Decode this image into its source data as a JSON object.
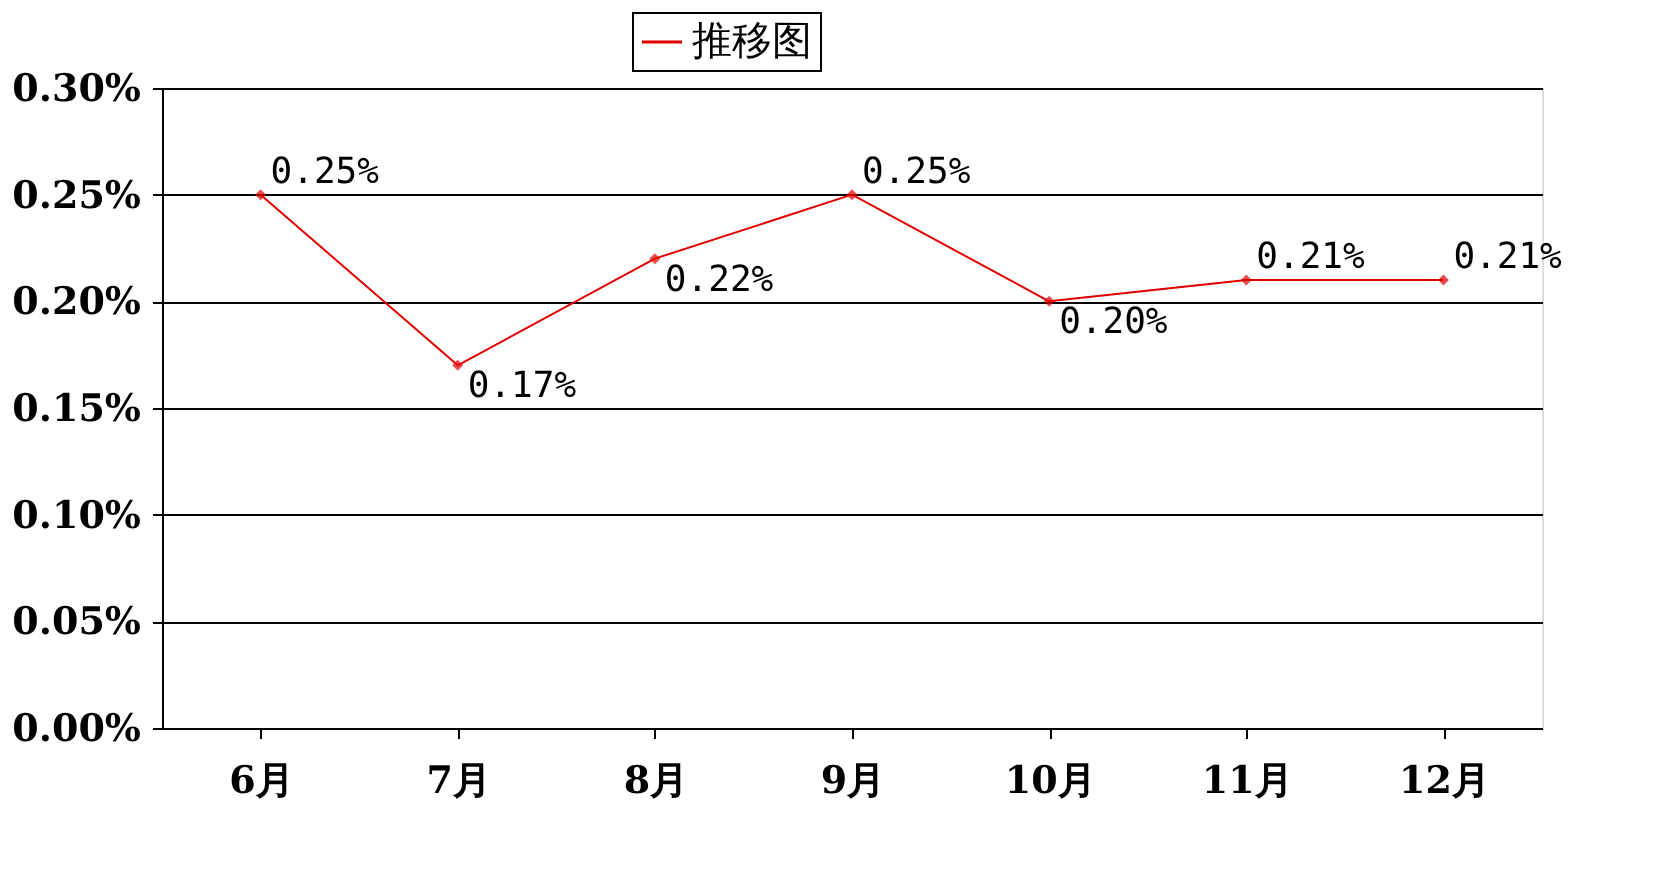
{
  "chart_data": {
    "type": "line",
    "categories": [
      "6月",
      "7月",
      "8月",
      "9月",
      "10月",
      "11月",
      "12月"
    ],
    "series": [
      {
        "name": "推移图",
        "color": "#e00000",
        "values": [
          0.25,
          0.17,
          0.22,
          0.25,
          0.2,
          0.21,
          0.21
        ],
        "value_labels": [
          "0.25%",
          "0.17%",
          "0.22%",
          "0.25%",
          "0.20%",
          "0.21%",
          "0.21%"
        ]
      }
    ],
    "ylim": [
      0,
      0.3
    ],
    "yticks": [
      {
        "value": 0,
        "label": "0.00%"
      },
      {
        "value": 0.05,
        "label": "0.05%"
      },
      {
        "value": 0.1,
        "label": "0.10%"
      },
      {
        "value": 0.15,
        "label": "0.15%"
      },
      {
        "value": 0.2,
        "label": "0.20%"
      },
      {
        "value": 0.25,
        "label": "0.25%"
      },
      {
        "value": 0.3,
        "label": "0.30%"
      }
    ],
    "grid": "y",
    "legend": "top",
    "marker": "diamond",
    "line_style": "solid"
  }
}
